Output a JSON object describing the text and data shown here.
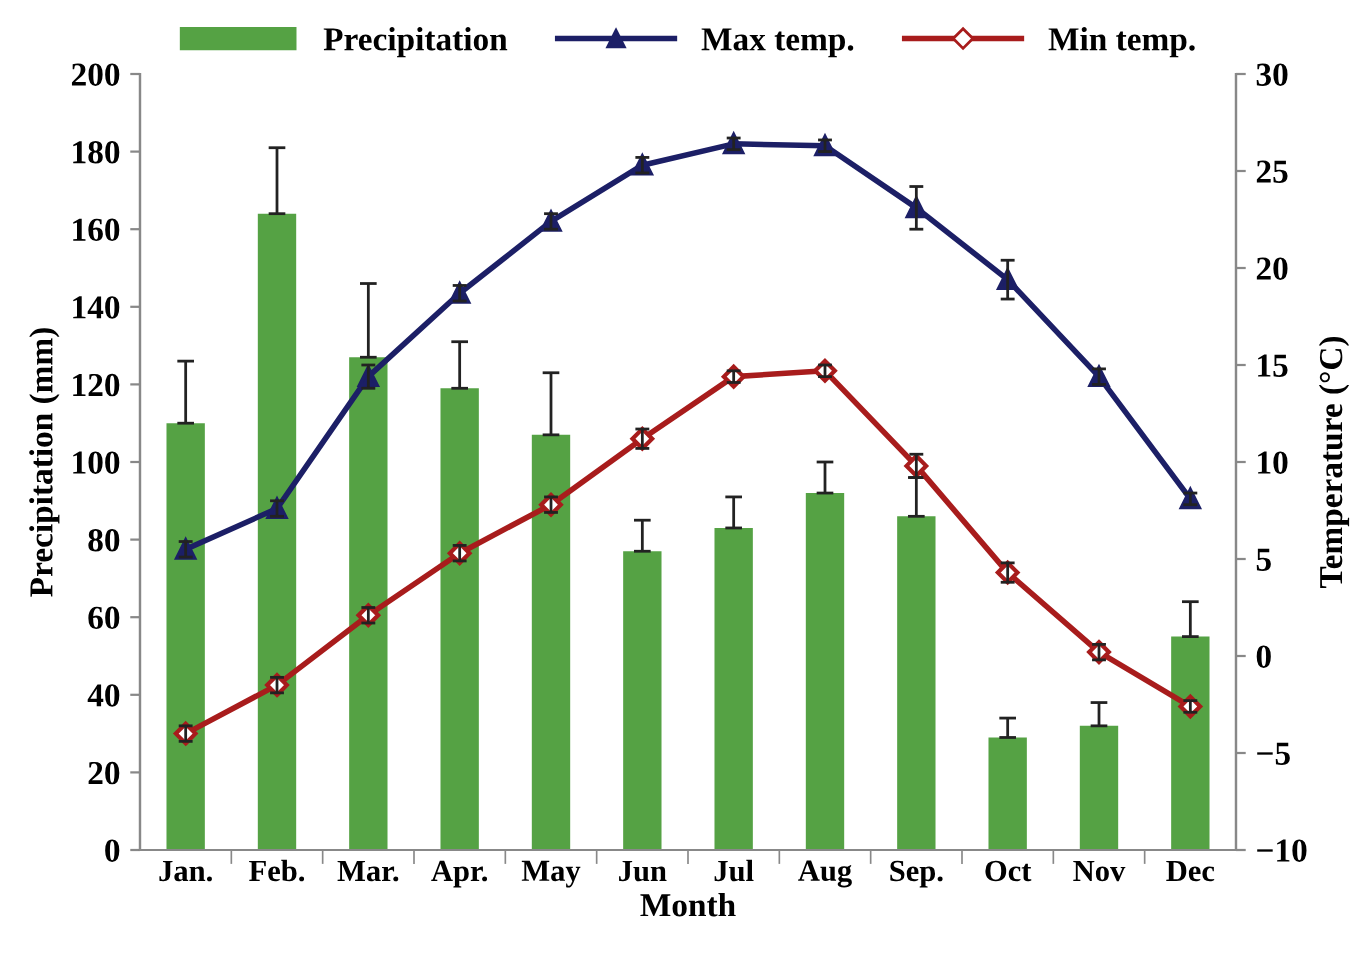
{
  "chart_data": {
    "type": "bar",
    "xlabel": "Month",
    "ylabel": "Precipitation (mm)",
    "y2label": "Temperature (°C)",
    "categories": [
      "Jan.",
      "Feb.",
      "Mar.",
      "Apr.",
      "May",
      "Jun",
      "Jul",
      "Aug",
      "Sep.",
      "Oct",
      "Nov",
      "Dec"
    ],
    "series": [
      {
        "name": "Precipitation",
        "color": "#55a244",
        "values": [
          110,
          164,
          127,
          119,
          107,
          77,
          83,
          92,
          86,
          29,
          32,
          55
        ],
        "errors": [
          [
            110,
            126
          ],
          [
            164,
            181
          ],
          [
            127,
            146
          ],
          [
            119,
            131
          ],
          [
            107,
            123
          ],
          [
            77,
            85
          ],
          [
            83,
            91
          ],
          [
            92,
            100
          ],
          [
            86,
            96
          ],
          [
            29,
            34
          ],
          [
            32,
            38
          ],
          [
            55,
            64
          ]
        ]
      },
      {
        "name": "Max temp.",
        "type": "line",
        "axis": "y2",
        "marker": "triangle",
        "color": "#1c1f66",
        "values": [
          5.5,
          7.6,
          14.4,
          18.7,
          22.4,
          25.3,
          26.4,
          26.3,
          23.1,
          19.4,
          14.4,
          8.1
        ],
        "errors": [
          0.4,
          0.4,
          0.6,
          0.4,
          0.4,
          0.4,
          0.3,
          0.3,
          1.1,
          1.0,
          0.4,
          0.3
        ]
      },
      {
        "name": "Min temp.",
        "type": "line",
        "axis": "y2",
        "marker": "diamond",
        "color": "#a81c1c",
        "values": [
          -4.0,
          -1.5,
          2.1,
          5.3,
          7.8,
          11.2,
          14.4,
          14.7,
          9.8,
          4.3,
          0.2,
          -2.6
        ],
        "errors": [
          0.4,
          0.4,
          0.4,
          0.4,
          0.4,
          0.5,
          0.3,
          0.3,
          0.6,
          0.5,
          0.4,
          0.3
        ]
      }
    ],
    "ylim": [
      0,
      200
    ],
    "yticks": [
      0,
      20,
      40,
      60,
      80,
      100,
      120,
      140,
      160,
      180,
      200
    ],
    "y2lim": [
      -10,
      30
    ],
    "y2ticks": [
      -10,
      -5,
      0,
      5,
      10,
      15,
      20,
      25,
      30
    ],
    "legend": "top",
    "grid": false
  }
}
